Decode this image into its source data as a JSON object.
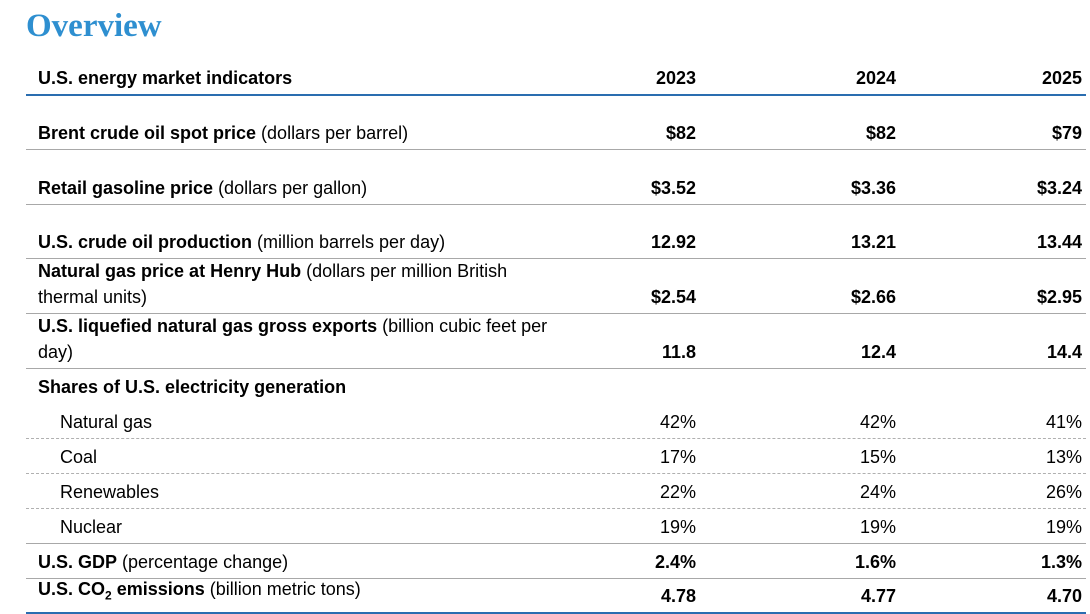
{
  "title": "Overview",
  "table": {
    "header": {
      "label": "U.S. energy market indicators",
      "years": [
        "2023",
        "2024",
        "2025"
      ]
    },
    "rows": [
      {
        "name": "Brent crude oil spot price",
        "unit": " (dollars per barrel)",
        "values": [
          "$82",
          "$82",
          "$79"
        ]
      },
      {
        "name": "Retail gasoline price",
        "unit": " (dollars per gallon)",
        "values": [
          "$3.52",
          "$3.36",
          "$3.24"
        ]
      },
      {
        "name": "U.S. crude oil production",
        "unit": " (million barrels per day)",
        "values": [
          "12.92",
          "13.21",
          "13.44"
        ]
      },
      {
        "name": "Natural gas price at Henry Hub",
        "unit": " (dollars per million British thermal units)",
        "values": [
          "$2.54",
          "$2.66",
          "$2.95"
        ]
      },
      {
        "name": "U.S. liquefied natural gas gross exports",
        "unit": " (billion cubic feet per day)",
        "values": [
          "11.8",
          "12.4",
          "14.4"
        ]
      }
    ],
    "shares_heading": "Shares of U.S. electricity generation",
    "shares": [
      {
        "name": "Natural gas",
        "values": [
          "42%",
          "42%",
          "41%"
        ]
      },
      {
        "name": "Coal",
        "values": [
          "17%",
          "15%",
          "13%"
        ]
      },
      {
        "name": "Renewables",
        "values": [
          "22%",
          "24%",
          "26%"
        ]
      },
      {
        "name": "Nuclear",
        "values": [
          "19%",
          "19%",
          "19%"
        ]
      }
    ],
    "gdp": {
      "name": "U.S. GDP",
      "unit": " (percentage change)",
      "values": [
        "2.4%",
        "1.6%",
        "1.3%"
      ]
    },
    "co2": {
      "name_prefix": "U.S. CO",
      "name_sub": "2",
      "name_suffix": " emissions",
      "unit": " (billion metric tons)",
      "values": [
        "4.78",
        "4.77",
        "4.70"
      ]
    }
  }
}
